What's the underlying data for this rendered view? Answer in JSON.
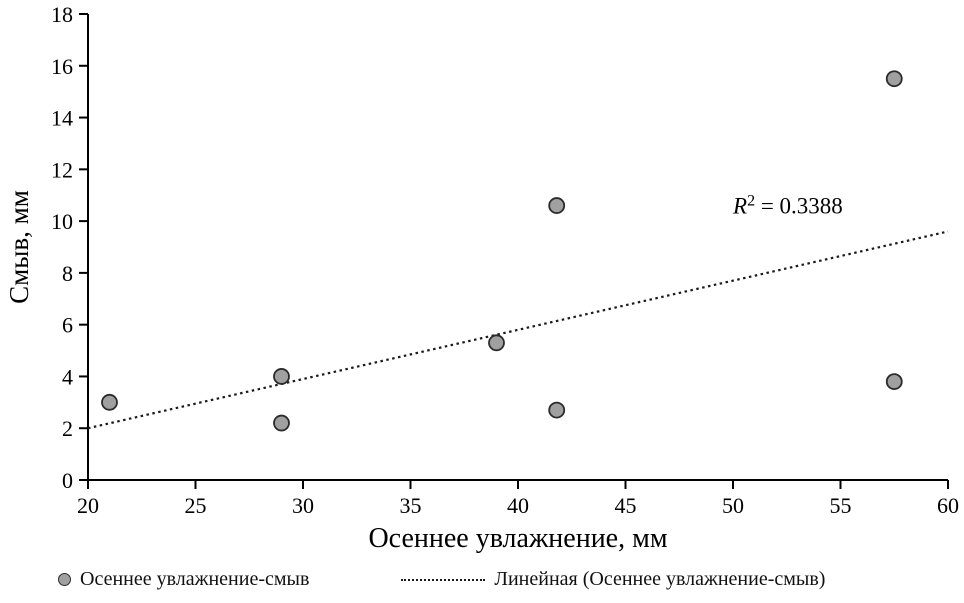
{
  "chart_data": {
    "type": "scatter",
    "title": "",
    "xlabel": "Осеннее увлажнение, мм",
    "ylabel": "Смыв, мм",
    "xlim": [
      20,
      60
    ],
    "ylim": [
      0,
      18
    ],
    "xstep": 5,
    "ystep": 2,
    "grid": false,
    "legend_position": "bottom",
    "series": [
      {
        "name": "Осеннее увлажнение-смыв",
        "points": [
          {
            "x": 21.0,
            "y": 3.0
          },
          {
            "x": 29.0,
            "y": 4.0
          },
          {
            "x": 29.0,
            "y": 2.2
          },
          {
            "x": 39.0,
            "y": 5.3
          },
          {
            "x": 41.8,
            "y": 10.6
          },
          {
            "x": 41.8,
            "y": 2.7
          },
          {
            "x": 57.5,
            "y": 15.5
          },
          {
            "x": 57.5,
            "y": 3.8
          }
        ]
      }
    ],
    "trendline": {
      "name": "Линейная (Осеннее увлажнение-смыв)",
      "x1": 20,
      "y1": 2.0,
      "x2": 60,
      "y2": 9.6,
      "r_squared": "0.3388"
    },
    "annotation": {
      "base": "R",
      "sup": "2",
      "rest": " = 0.3388",
      "x": 50.0,
      "y": 10.3
    },
    "colors": {
      "point_fill": "#a0a0a0",
      "point_stroke": "#2b2b2b",
      "line": "#1a1a1a",
      "axis": "#000000",
      "text": "#000000"
    }
  },
  "legend": {
    "items": [
      {
        "label": "Осеннее увлажнение-смыв",
        "marker": "point"
      },
      {
        "label": "Линейная (Осеннее увлажнение-смыв)",
        "marker": "dashed-line"
      }
    ]
  }
}
